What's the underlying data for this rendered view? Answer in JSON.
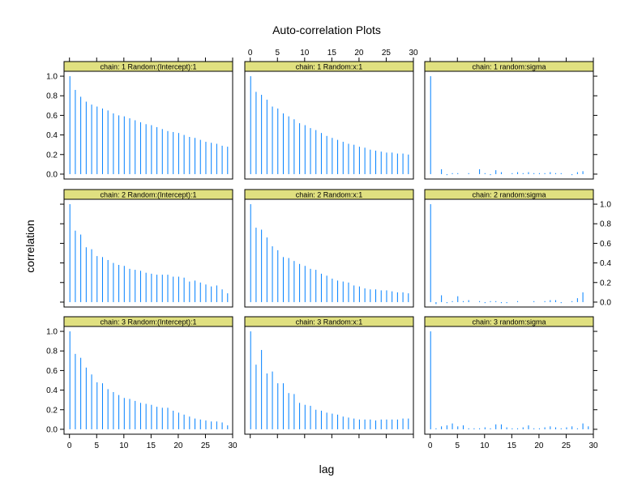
{
  "chart_data": {
    "type": "bar",
    "subtype": "autocorrelation-lattice",
    "title": "Auto-correlation Plots",
    "xlabel": "lag",
    "ylabel": "correlation",
    "layout": {
      "columns": 3,
      "rows": 3
    },
    "xlim": [
      -1,
      30
    ],
    "ylim": [
      -0.05,
      1.05
    ],
    "x_ticks": [
      0,
      5,
      10,
      15,
      20,
      25,
      30
    ],
    "y_ticks": [
      0.0,
      0.2,
      0.4,
      0.6,
      0.8,
      1.0
    ],
    "y_tick_labels": [
      "0.0",
      "0.2",
      "0.4",
      "0.6",
      "0.8",
      "1.0"
    ],
    "strip_color": "#e0e080",
    "bar_color": "#0080ff",
    "grid": false,
    "lags": [
      0,
      1,
      2,
      3,
      4,
      5,
      6,
      7,
      8,
      9,
      10,
      11,
      12,
      13,
      14,
      15,
      16,
      17,
      18,
      19,
      20,
      21,
      22,
      23,
      24,
      25,
      26,
      27,
      28,
      29
    ],
    "panels": [
      {
        "strip": "chain:  1   Random:(Intercept):1",
        "values": [
          1.0,
          0.86,
          0.79,
          0.74,
          0.71,
          0.69,
          0.67,
          0.65,
          0.62,
          0.6,
          0.59,
          0.57,
          0.55,
          0.53,
          0.51,
          0.5,
          0.48,
          0.46,
          0.44,
          0.43,
          0.42,
          0.4,
          0.38,
          0.37,
          0.35,
          0.33,
          0.32,
          0.31,
          0.29,
          0.28
        ]
      },
      {
        "strip": "chain:  1   Random:x:1",
        "values": [
          1.0,
          0.84,
          0.81,
          0.76,
          0.69,
          0.67,
          0.62,
          0.59,
          0.56,
          0.52,
          0.5,
          0.47,
          0.45,
          0.42,
          0.39,
          0.37,
          0.35,
          0.33,
          0.31,
          0.3,
          0.28,
          0.27,
          0.25,
          0.24,
          0.23,
          0.22,
          0.22,
          0.21,
          0.21,
          0.2
        ]
      },
      {
        "strip": "chain:  1   random:sigma",
        "values": [
          1.0,
          0.0,
          0.05,
          -0.01,
          0.01,
          0.01,
          0.0,
          0.01,
          0.0,
          0.05,
          0.01,
          -0.01,
          0.04,
          0.02,
          0.0,
          0.01,
          0.02,
          0.01,
          0.02,
          0.01,
          0.01,
          0.01,
          0.02,
          0.01,
          0.01,
          0.0,
          -0.01,
          0.02,
          0.03,
          0.0
        ]
      },
      {
        "strip": "chain:  2   Random:(Intercept):1",
        "values": [
          1.0,
          0.73,
          0.69,
          0.56,
          0.54,
          0.47,
          0.46,
          0.43,
          0.4,
          0.38,
          0.37,
          0.34,
          0.33,
          0.32,
          0.3,
          0.29,
          0.28,
          0.28,
          0.28,
          0.26,
          0.26,
          0.25,
          0.21,
          0.22,
          0.2,
          0.18,
          0.16,
          0.17,
          0.13,
          0.09
        ]
      },
      {
        "strip": "chain:  2   Random:x:1",
        "values": [
          1.0,
          0.76,
          0.74,
          0.66,
          0.57,
          0.53,
          0.46,
          0.45,
          0.42,
          0.39,
          0.37,
          0.34,
          0.33,
          0.29,
          0.27,
          0.24,
          0.22,
          0.21,
          0.2,
          0.17,
          0.16,
          0.14,
          0.13,
          0.13,
          0.12,
          0.12,
          0.11,
          0.1,
          0.1,
          0.09
        ]
      },
      {
        "strip": "chain:  2   random:sigma",
        "values": [
          1.0,
          -0.02,
          0.07,
          -0.01,
          0.01,
          0.06,
          0.01,
          0.02,
          0.0,
          0.01,
          -0.01,
          0.01,
          0.01,
          -0.01,
          -0.01,
          0.0,
          0.01,
          0.0,
          0.0,
          0.01,
          0.0,
          0.01,
          0.02,
          0.02,
          -0.01,
          0.0,
          0.01,
          0.04,
          0.1,
          0.0
        ]
      },
      {
        "strip": "chain:  3   Random:(Intercept):1",
        "values": [
          1.0,
          0.77,
          0.73,
          0.63,
          0.56,
          0.48,
          0.47,
          0.41,
          0.38,
          0.35,
          0.32,
          0.31,
          0.29,
          0.27,
          0.26,
          0.25,
          0.23,
          0.22,
          0.22,
          0.19,
          0.17,
          0.15,
          0.13,
          0.11,
          0.1,
          0.09,
          0.08,
          0.08,
          0.07,
          0.04
        ]
      },
      {
        "strip": "chain:  3   Random:x:1",
        "values": [
          1.0,
          0.66,
          0.81,
          0.57,
          0.59,
          0.47,
          0.47,
          0.37,
          0.36,
          0.27,
          0.25,
          0.24,
          0.2,
          0.19,
          0.17,
          0.16,
          0.15,
          0.13,
          0.12,
          0.11,
          0.1,
          0.1,
          0.1,
          0.09,
          0.1,
          0.1,
          0.1,
          0.1,
          0.11,
          0.11
        ]
      },
      {
        "strip": "chain:  3   random:sigma",
        "values": [
          1.0,
          0.01,
          0.03,
          0.04,
          0.06,
          0.03,
          0.04,
          0.01,
          0.01,
          0.01,
          0.02,
          0.01,
          0.05,
          0.05,
          0.02,
          0.01,
          0.01,
          0.02,
          0.04,
          0.01,
          0.01,
          0.02,
          0.03,
          0.02,
          0.01,
          0.02,
          0.03,
          0.01,
          0.06,
          0.03
        ]
      }
    ]
  }
}
